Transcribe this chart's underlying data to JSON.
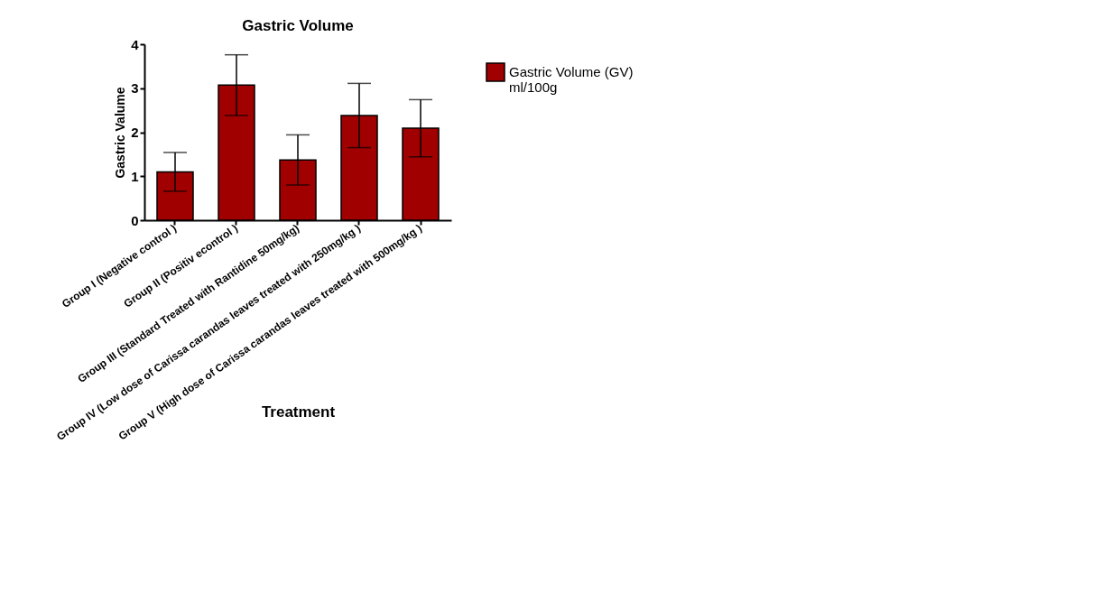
{
  "chart_data": {
    "type": "bar",
    "title": "Gastric Volume",
    "xlabel": "Treatment",
    "ylabel": "Gastric Valume",
    "categories": [
      "Group I (Negative control )",
      "Group II (Positiv econtrol )",
      "Group III (Standard  Treated  with Rantidine 50mg/kg)",
      "Group IV (Low dose of Carissa carandas leaves treated with 250mg/kg )",
      "Group V (High dose of Carissa carandas leaves treated with 500mg/kg )"
    ],
    "series": [
      {
        "name": "Gastric Volume (GV) ml/100g",
        "color": "#a00000",
        "values": [
          1.1,
          3.07,
          1.37,
          2.38,
          2.09
        ],
        "errors": [
          0.44,
          0.69,
          0.57,
          0.73,
          0.65
        ]
      }
    ],
    "ylim": [
      0,
      4
    ],
    "yticks": [
      0,
      1,
      2,
      3,
      4
    ],
    "grid": false,
    "legend": "top right"
  }
}
